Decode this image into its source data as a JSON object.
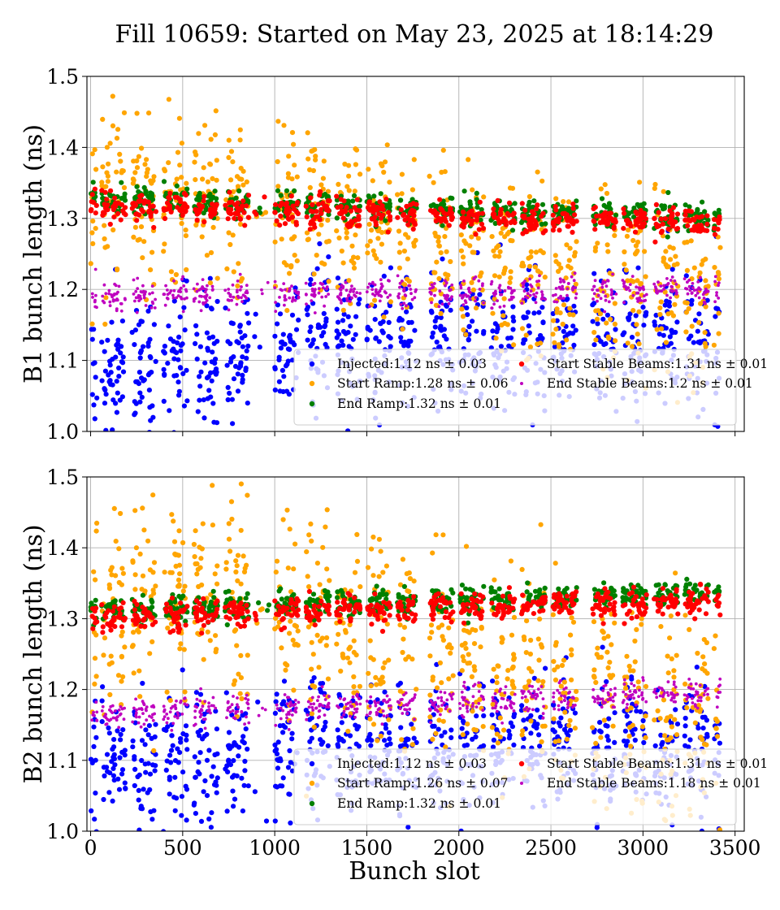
{
  "chart_data": {
    "type": "scatter",
    "title": "Fill 10659: Started on May 23, 2025 at 18:14:29",
    "xlabel": "Bunch slot",
    "xlim": [
      -20,
      3550
    ],
    "xticks": [
      0,
      500,
      1000,
      1500,
      2000,
      2500,
      3000,
      3500
    ],
    "grid": true,
    "colors": {
      "injected": "#0000ff",
      "start_ramp": "#ffa500",
      "end_ramp": "#008000",
      "start_stable": "#ff0000",
      "end_stable": "#bf00bf"
    },
    "panels": [
      {
        "ylabel": "B1 bunch length (ns)",
        "ylim": [
          1.0,
          1.5
        ],
        "yticks": [
          "1.0",
          "1.1",
          "1.2",
          "1.3",
          "1.4",
          "1.5"
        ],
        "legend_position": "lower-right",
        "series": [
          {
            "name": "Injected:1.12 ns ± 0.03",
            "key": "injected",
            "mean": 1.12,
            "std": 0.03
          },
          {
            "name": "Start Ramp:1.28 ns ± 0.06",
            "key": "start_ramp",
            "mean": 1.28,
            "std": 0.06
          },
          {
            "name": "End Ramp:1.32 ns ± 0.01",
            "key": "end_ramp",
            "mean": 1.32,
            "std": 0.01
          },
          {
            "name": "Start Stable Beams:1.31 ns ± 0.01",
            "key": "start_stable",
            "mean": 1.31,
            "std": 0.01
          },
          {
            "name": "End Stable Beams:1.2 ns ± 0.01",
            "key": "end_stable",
            "mean": 1.2,
            "std": 0.01
          }
        ],
        "trends": {
          "injected": [
            [
              0,
              1.08
            ],
            [
              800,
              1.11
            ],
            [
              1000,
              1.13
            ],
            [
              3400,
              1.13
            ]
          ],
          "start_ramp": [
            [
              0,
              1.33
            ],
            [
              700,
              1.34
            ],
            [
              1200,
              1.32
            ],
            [
              1800,
              1.28
            ],
            [
              2500,
              1.23
            ],
            [
              3400,
              1.19
            ]
          ],
          "end_ramp": [
            [
              0,
              1.327
            ],
            [
              3400,
              1.302
            ]
          ],
          "start_stable": [
            [
              0,
              1.318
            ],
            [
              3400,
              1.293
            ]
          ],
          "end_stable": [
            [
              0,
              1.19
            ],
            [
              3400,
              1.2
            ]
          ]
        }
      },
      {
        "ylabel": "B2 bunch length (ns)",
        "ylim": [
          1.0,
          1.5
        ],
        "yticks": [
          "1.0",
          "1.1",
          "1.2",
          "1.3",
          "1.4",
          "1.5"
        ],
        "legend_position": "lower-right",
        "series": [
          {
            "name": "Injected:1.12 ns ± 0.03",
            "key": "injected",
            "mean": 1.12,
            "std": 0.03
          },
          {
            "name": "Start Ramp:1.26 ns ± 0.07",
            "key": "start_ramp",
            "mean": 1.26,
            "std": 0.07
          },
          {
            "name": "End Ramp:1.32 ns ± 0.01",
            "key": "end_ramp",
            "mean": 1.32,
            "std": 0.01
          },
          {
            "name": "Start Stable Beams:1.31 ns ± 0.01",
            "key": "start_stable",
            "mean": 1.31,
            "std": 0.01
          },
          {
            "name": "End Stable Beams:1.18 ns ± 0.01",
            "key": "end_stable",
            "mean": 1.18,
            "std": 0.01
          }
        ],
        "trends": {
          "injected": [
            [
              0,
              1.1
            ],
            [
              800,
              1.1
            ],
            [
              1000,
              1.12
            ],
            [
              3400,
              1.12
            ]
          ],
          "start_ramp": [
            [
              0,
              1.34
            ],
            [
              700,
              1.34
            ],
            [
              1200,
              1.3
            ],
            [
              1800,
              1.25
            ],
            [
              2500,
              1.2
            ],
            [
              3400,
              1.16
            ]
          ],
          "end_ramp": [
            [
              0,
              1.312
            ],
            [
              3400,
              1.335
            ]
          ],
          "start_stable": [
            [
              0,
              1.302
            ],
            [
              3400,
              1.325
            ]
          ],
          "end_stable": [
            [
              0,
              1.165
            ],
            [
              3400,
              1.195
            ]
          ]
        }
      }
    ]
  }
}
